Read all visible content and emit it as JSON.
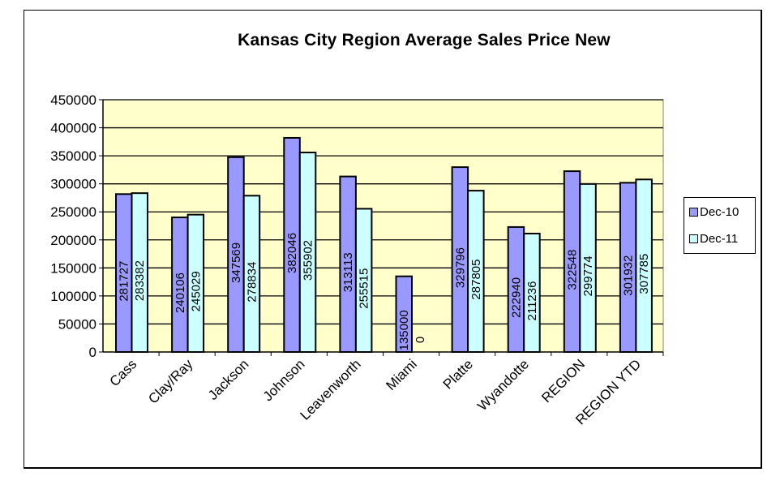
{
  "chart_data": {
    "type": "bar",
    "title": "Kansas City Region Average Sales Price New",
    "categories": [
      "Cass",
      "Clay/Ray",
      "Jackson",
      "Johnson",
      "Leavenworth",
      "Miami",
      "Platte",
      "Wyandotte",
      "REGION",
      "REGION YTD"
    ],
    "series": [
      {
        "name": "Dec-10",
        "color": "#9999ff",
        "values": [
          281727,
          240106,
          347569,
          382046,
          313113,
          135000,
          329796,
          222940,
          322548,
          301932
        ]
      },
      {
        "name": "Dec-11",
        "color": "#ccffff",
        "values": [
          283382,
          245029,
          278834,
          355902,
          255515,
          0,
          287805,
          211236,
          299774,
          307785
        ]
      }
    ],
    "ylim": [
      0,
      450000
    ],
    "yticks": [
      0,
      50000,
      100000,
      150000,
      200000,
      250000,
      300000,
      350000,
      400000,
      450000
    ],
    "grid": true,
    "plot_background": "#ffffcc",
    "legend": "right",
    "data_labels": true
  }
}
